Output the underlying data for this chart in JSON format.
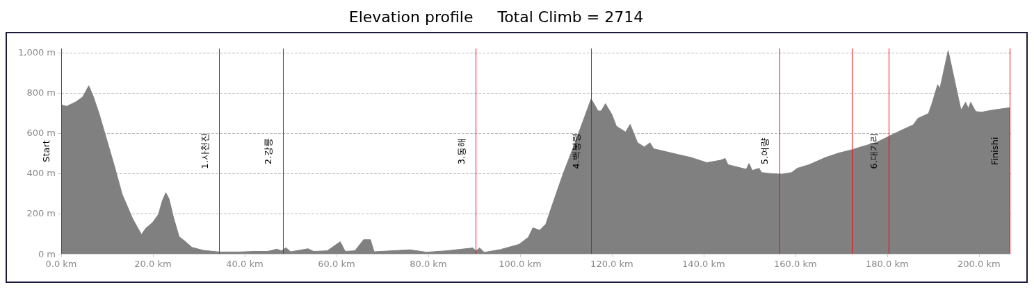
{
  "chart_data": {
    "type": "area",
    "title": "Elevation profile     Total Climb = 2714",
    "color": "#808080",
    "grid": "y",
    "x": [
      0,
      1.2,
      3.2,
      4.7,
      5.3,
      6.0,
      7.0,
      8.3,
      9.8,
      11.6,
      13.3,
      14.4,
      15.6,
      16.9,
      17.5,
      18.4,
      19.9,
      21.2,
      22.0,
      22.8,
      23.5,
      24.5,
      25.7,
      27.0,
      28.5,
      31.0,
      34.5,
      38.6,
      42.0,
      45.0,
      47.0,
      48.0,
      49.0,
      50.0,
      53.8,
      55.0,
      58.0,
      60.8,
      61.9,
      64.0,
      65.9,
      67.4,
      68.2,
      72.0,
      76.0,
      79.6,
      84.0,
      89.7,
      90.4,
      91.2,
      92.2,
      95.7,
      99.8,
      101.8,
      102.8,
      104.3,
      105.6,
      106.9,
      109.4,
      111.4,
      113.7,
      115.5,
      117.0,
      117.7,
      118.6,
      120.0,
      121.0,
      123.0,
      124.0,
      125.6,
      127.1,
      128.3,
      129.1,
      134.1,
      137.2,
      140.7,
      143.7,
      144.7,
      145.3,
      149.3,
      149.9,
      150.6,
      152.1,
      152.6,
      154.4,
      157.0,
      159.2,
      160.4,
      163.0,
      166.5,
      169.5,
      172.5,
      174.1,
      177.6,
      183.1,
      185.7,
      186.7,
      189.0,
      189.7,
      191.0,
      191.5,
      193.3,
      195.0,
      196.1,
      197.1,
      197.7,
      198.2,
      199.3,
      200.6,
      202.9,
      206.7
    ],
    "values": [
      740,
      733,
      755,
      780,
      805,
      835,
      782,
      694,
      577,
      436,
      295,
      237,
      173,
      120,
      96,
      126,
      155,
      196,
      261,
      304,
      273,
      179,
      85,
      62,
      32,
      17,
      9,
      9,
      12,
      12,
      23,
      15,
      30,
      10,
      25,
      12,
      15,
      60,
      12,
      15,
      70,
      70,
      10,
      15,
      20,
      8,
      15,
      29,
      14,
      29,
      7,
      21,
      47,
      82,
      129,
      117,
      147,
      235,
      399,
      517,
      658,
      770,
      710,
      710,
      746,
      693,
      634,
      605,
      643,
      552,
      531,
      552,
      522,
      495,
      479,
      453,
      465,
      474,
      443,
      420,
      449,
      414,
      425,
      404,
      399,
      395,
      404,
      425,
      443,
      478,
      501,
      518,
      530,
      553,
      614,
      641,
      673,
      697,
      742,
      840,
      822,
      1010,
      829,
      714,
      753,
      722,
      753,
      707,
      704,
      714,
      726
    ],
    "xlim": [
      0,
      207
    ],
    "xticks": [
      {
        "value": 0,
        "label": "0.0 km"
      },
      {
        "value": 20,
        "label": "20.0 km"
      },
      {
        "value": 40,
        "label": "40.0 km"
      },
      {
        "value": 60,
        "label": "60.0 km"
      },
      {
        "value": 80,
        "label": "80.0 km"
      },
      {
        "value": 100,
        "label": "100.0 km"
      },
      {
        "value": 120,
        "label": "120.0 km"
      },
      {
        "value": 140,
        "label": "140.0 km"
      },
      {
        "value": 160,
        "label": "160.0 km"
      },
      {
        "value": 180,
        "label": "180.0 km"
      },
      {
        "value": 200,
        "label": "200.0 km"
      }
    ],
    "ylim": [
      0,
      1020
    ],
    "yticks": [
      {
        "value": 0,
        "label": "0 m"
      },
      {
        "value": 200,
        "label": "200 m"
      },
      {
        "value": 400,
        "label": "400 m"
      },
      {
        "value": 600,
        "label": "600 m"
      },
      {
        "value": 800,
        "label": "800 m"
      },
      {
        "value": 1000,
        "label": "1,000 m"
      }
    ],
    "ref_lines": [
      {
        "axis": "x",
        "value": 0,
        "label": "Start",
        "color": "#ff0000"
      },
      {
        "axis": "x",
        "value": 34.5,
        "label": "1.사천진",
        "color": "#ff0000"
      },
      {
        "axis": "x",
        "value": 48.4,
        "label": "2.강릉",
        "color": "#ff0000"
      },
      {
        "axis": "x",
        "value": 90.4,
        "label": "3.동해",
        "color": "#ff0000"
      },
      {
        "axis": "x",
        "value": 115.5,
        "label": "4.백봉령",
        "color": "#ff0000"
      },
      {
        "axis": "x",
        "value": 156.6,
        "label": "5.여량",
        "color": "#ff0000"
      },
      {
        "axis": "x",
        "value": 172.3,
        "label": null,
        "color": "#ff0000"
      },
      {
        "axis": "x",
        "value": 180.4,
        "label": "6.대기리",
        "color": "#ff0000"
      },
      {
        "axis": "x",
        "value": 206.7,
        "label": "Finishi",
        "color": "#ff0000"
      }
    ]
  }
}
